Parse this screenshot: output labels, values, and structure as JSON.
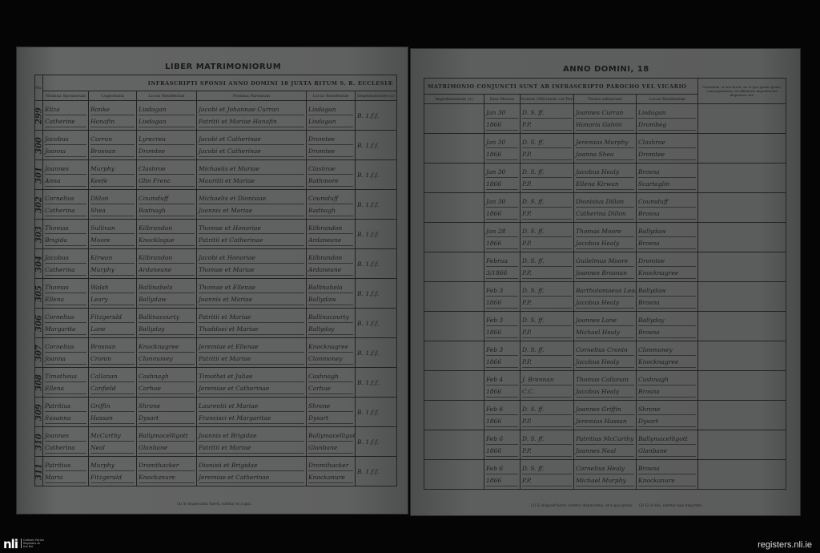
{
  "left_page": {
    "title": "LIBER MATRIMONIORUM",
    "banner": "INFRASCRIPTI SPONSI ANNO DOMINI 18   JUXTA RITUM S. R. ECCLESIÆ",
    "no_label": "No.",
    "columns": [
      "Nomina Sponsorum",
      "Cognomina",
      "Locus Residentiæ",
      "Nomina Parentum",
      "Locus Residentiæ",
      "Dispensationes (a)"
    ],
    "footnote": "(a) Si dispensatio fuerit, notetur et a quo.",
    "rows": [
      {
        "num": "299",
        "names": [
          "Eliza",
          "Catherine"
        ],
        "surnames": [
          "Ronke",
          "Hanafin"
        ],
        "res": [
          "Lisdagan",
          "Lisdagan"
        ],
        "parents": [
          "Jacobi et Johannae Curran",
          "Patritii et Mariae Hanafin"
        ],
        "res2": [
          "Lisdagan",
          "Lisdagan"
        ],
        "disp": "B. 1.f.f."
      },
      {
        "num": "300",
        "names": [
          "Jacobus",
          "Joanna"
        ],
        "surnames": [
          "Curran",
          "Brosnan"
        ],
        "res": [
          "Lyrecrea",
          "Dromtee"
        ],
        "parents": [
          "Jacobi et Catherinae",
          "Jacobi et Catherinae"
        ],
        "res2": [
          "Dromtee",
          "Dromtee"
        ],
        "disp": "B. 1.f.f."
      },
      {
        "num": "301",
        "names": [
          "Joannes",
          "Anna"
        ],
        "surnames": [
          "Murphy",
          "Keefe"
        ],
        "res": [
          "Clashroe",
          "Glin Frenc"
        ],
        "parents": [
          "Michaelis et Mariae",
          "Mauritii et Mariae"
        ],
        "res2": [
          "Clashroe",
          "Rathmore"
        ],
        "disp": "B. 1.f.f."
      },
      {
        "num": "302",
        "names": [
          "Cornelius",
          "Catherina"
        ],
        "surnames": [
          "Dillon",
          "Shea"
        ],
        "res": [
          "Coumduff",
          "Radnagh"
        ],
        "parents": [
          "Michaelis et Dionisiae",
          "Joannis et Mariae"
        ],
        "res2": [
          "Coumduff",
          "Radnagh"
        ],
        "disp": "B. 1.f.f."
      },
      {
        "num": "303",
        "names": [
          "Thomas",
          "Brigida"
        ],
        "surnames": [
          "Sullivan",
          "Moore"
        ],
        "res": [
          "Kilbrandon",
          "Knocklogue"
        ],
        "parents": [
          "Thomae et Honoriae",
          "Patritii et Catherinae"
        ],
        "res2": [
          "Kilbrandon",
          "Ardaneane"
        ],
        "disp": "B. 1.f.f."
      },
      {
        "num": "304",
        "names": [
          "Jacobus",
          "Catherina"
        ],
        "surnames": [
          "Kirwan",
          "Murphy"
        ],
        "res": [
          "Kilbrandon",
          "Ardaneane"
        ],
        "parents": [
          "Jacobi et Honoriae",
          "Thomae et Mariae"
        ],
        "res2": [
          "Kilbrandon",
          "Ardaneane"
        ],
        "disp": "B. 1.f.f."
      },
      {
        "num": "305",
        "names": [
          "Thomas",
          "Ellena"
        ],
        "surnames": [
          "Walsh",
          "Leary"
        ],
        "res": [
          "Ballinahela",
          "Ballydaw"
        ],
        "parents": [
          "Thomae et Ellenae",
          "Joannis et Mariae"
        ],
        "res2": [
          "Ballinahela",
          "Ballydaw"
        ],
        "disp": "B. 1.f.f."
      },
      {
        "num": "306",
        "names": [
          "Cornelius",
          "Margarita"
        ],
        "surnames": [
          "Fitzgerald",
          "Lane"
        ],
        "res": [
          "Ballinacourty",
          "Ballyday"
        ],
        "parents": [
          "Patritii et Mariae",
          "Thaddaei et Mariae"
        ],
        "res2": [
          "Ballinacourty",
          "Ballyday"
        ],
        "disp": "B. 1.f.f."
      },
      {
        "num": "307",
        "names": [
          "Cornelius",
          "Joanna"
        ],
        "surnames": [
          "Brosnan",
          "Cronin"
        ],
        "res": [
          "Knocknagree",
          "Clonmoney"
        ],
        "parents": [
          "Jeremiae et Ellenae",
          "Patritii et Mariae"
        ],
        "res2": [
          "Knocknagree",
          "Clonmoney"
        ],
        "disp": "B. 1.f.f."
      },
      {
        "num": "308",
        "names": [
          "Timotheus",
          "Ellena"
        ],
        "surnames": [
          "Callanan",
          "Canfield"
        ],
        "res": [
          "Cashnagh",
          "Carhue"
        ],
        "parents": [
          "Timothei et Juliae",
          "Jeremiae et Catherinae"
        ],
        "res2": [
          "Cashnagh",
          "Carhue"
        ],
        "disp": "B. 1.f.f."
      },
      {
        "num": "309",
        "names": [
          "Patritius",
          "Susanna"
        ],
        "surnames": [
          "Griffin",
          "Hassan"
        ],
        "res": [
          "Shrone",
          "Dysart"
        ],
        "parents": [
          "Laurentii et Mariae",
          "Francisci et Margaritae"
        ],
        "res2": [
          "Shrone",
          "Dysart"
        ],
        "disp": "B. 1.f.f."
      },
      {
        "num": "310",
        "names": [
          "Joannes",
          "Catherina"
        ],
        "surnames": [
          "McCarthy",
          "Neal"
        ],
        "res": [
          "Ballymacelligott",
          "Glanbane"
        ],
        "parents": [
          "Joannis et Brigidae",
          "Patritii et Mariae"
        ],
        "res2": [
          "Ballymacelligott",
          "Glanbane"
        ],
        "disp": "B. 1.f.f."
      },
      {
        "num": "311",
        "names": [
          "Patritius",
          "Maria"
        ],
        "surnames": [
          "Murphy",
          "Fitzgerald"
        ],
        "res": [
          "Dromthacker",
          "Knockanure"
        ],
        "parents": [
          "Dionisii et Brigidae",
          "Jeremiae et Catherinae"
        ],
        "res2": [
          "Dromthacker",
          "Knockanure"
        ],
        "disp": "B. 1.f.f."
      }
    ]
  },
  "right_page": {
    "title": "ANNO DOMINI, 18",
    "banner": "MATRIMONIO CONJUNCTI SUNT AB INFRASCRIPTO PAROCHO VEL VICARIO",
    "columns": [
      "Impedimentum (1)",
      "Dies Mensis",
      "Nomen Officiantis vel Parochi",
      "Testes adfuerunt",
      "Locus Residentiæ"
    ],
    "note_header": "Notandum, si non fuerit, an et quo gradu sponsi, consanguinitatis vel affinitatis impedimento dispensati sint",
    "footnotes": [
      "(1) Si aliquod fuerit, notetur dispensatio, et a quo gradu.",
      "(2) Si id alio, notetur quo deputato."
    ],
    "rows": [
      {
        "date": "Jan 30",
        "year": "1866",
        "off": [
          "D. S. ff.",
          "P.P."
        ],
        "wit": [
          "Joannes Curran",
          "Honoria Galvin"
        ],
        "res": [
          "Lisdagan",
          "Drombeg"
        ]
      },
      {
        "date": "Jan 30",
        "year": "1866",
        "off": [
          "D. S. ff.",
          "P.P."
        ],
        "wit": [
          "Jeremias Murphy",
          "Joanna Shea"
        ],
        "res": [
          "Clashroe",
          "Dromtee"
        ]
      },
      {
        "date": "Jan 30",
        "year": "1866",
        "off": [
          "D. S. ff.",
          "P.P."
        ],
        "wit": [
          "Jacobus Healy",
          "Ellena Kirwan"
        ],
        "res": [
          "Brosna",
          "Scartaglin"
        ]
      },
      {
        "date": "Jan 30",
        "year": "1866",
        "off": [
          "D. S. ff.",
          "P.P."
        ],
        "wit": [
          "Dionisius Dillon",
          "Catherina Dillon"
        ],
        "res": [
          "Coumduff",
          "Brosna"
        ]
      },
      {
        "date": "Jan 28",
        "year": "1866",
        "off": [
          "D. S. ff.",
          "P.P."
        ],
        "wit": [
          "Thomas Moore",
          "Jacobus Healy"
        ],
        "res": [
          "Ballydaw",
          "Brosna"
        ]
      },
      {
        "date": "Februa",
        "year": "3/1866",
        "off": [
          "D. S. ff.",
          "P.P."
        ],
        "wit": [
          "Guilelmus Moore",
          "Joannes Brosnan"
        ],
        "res": [
          "Dromtee",
          "Knocknagree"
        ]
      },
      {
        "date": "Feb 3",
        "year": "1866",
        "off": [
          "D. S. ff.",
          "P.P."
        ],
        "wit": [
          "Bartholomaeus Leary",
          "Jacobus Healy"
        ],
        "res": [
          "Ballydaw",
          "Brosna"
        ]
      },
      {
        "date": "Feb 3",
        "year": "1866",
        "off": [
          "D. S. ff.",
          "P.P."
        ],
        "wit": [
          "Joannes Lane",
          "Michael Healy"
        ],
        "res": [
          "Ballyday",
          "Brosna"
        ]
      },
      {
        "date": "Feb 3",
        "year": "1866",
        "off": [
          "D. S. ff.",
          "P.P."
        ],
        "wit": [
          "Cornelius Cronin",
          "Jacobus Healy"
        ],
        "res": [
          "Clonmoney",
          "Knocknagree"
        ]
      },
      {
        "date": "Feb 4",
        "year": "1866",
        "off": [
          "J. Brennan",
          "C.C."
        ],
        "wit": [
          "Thomas Callanan",
          "Jacobus Healy"
        ],
        "res": [
          "Cashnagh",
          "Brosna"
        ]
      },
      {
        "date": "Feb 6",
        "year": "1866",
        "off": [
          "D. S. ff.",
          "P.P."
        ],
        "wit": [
          "Joannes Griffin",
          "Jeremias Hassan"
        ],
        "res": [
          "Shrone",
          "Dysart"
        ]
      },
      {
        "date": "Feb 6",
        "year": "1866",
        "off": [
          "D. S. ff.",
          "P.P."
        ],
        "wit": [
          "Patritius McCarthy",
          "Joannes Neal"
        ],
        "res": [
          "Ballymacelligott",
          "Glanbane"
        ]
      },
      {
        "date": "Feb 6",
        "year": "1866",
        "off": [
          "D. S. ff.",
          "P.P."
        ],
        "wit": [
          "Cornelius Healy",
          "Michael Murphy"
        ],
        "res": [
          "Brosna",
          "Knockanure"
        ]
      }
    ]
  },
  "footer": {
    "logo": "nli",
    "logo_sub": "Catholic Parish Registers at the NLI",
    "site": "registers.nli.ie"
  },
  "colors": {
    "paper": "#5e5f5f",
    "ink": "#1b1b1b",
    "background": "#050505"
  }
}
